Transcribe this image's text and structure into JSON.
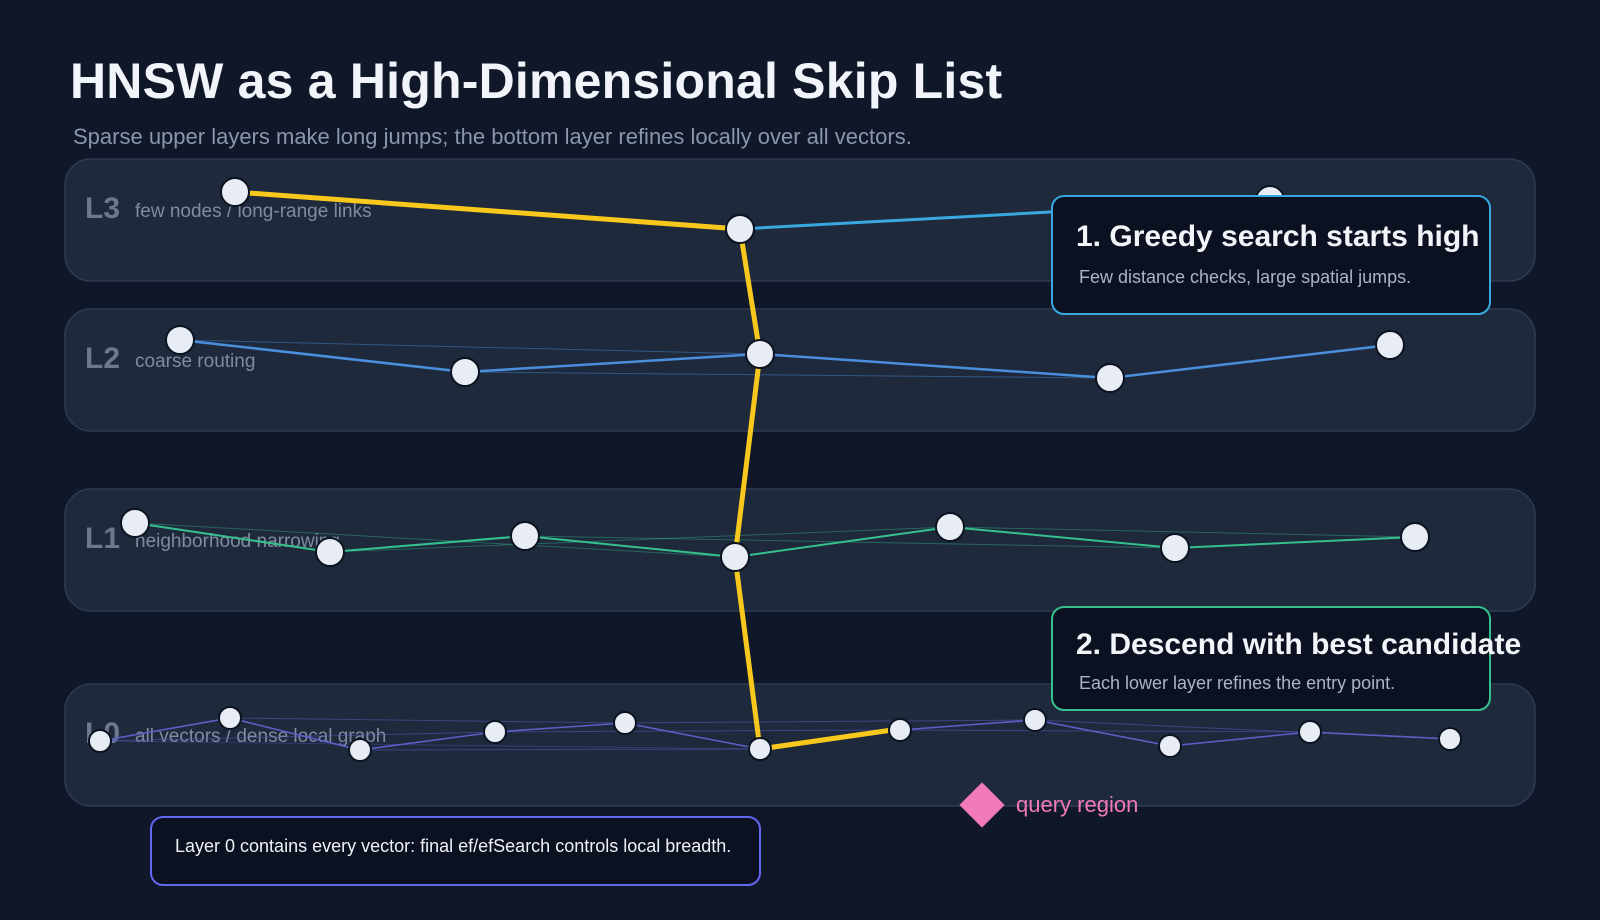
{
  "header": {
    "title": "HNSW as a High-Dimensional Skip List",
    "subtitle": "Sparse upper layers make long jumps; the bottom layer refines locally over all vectors."
  },
  "layers": [
    {
      "id": "L3",
      "label": "L3",
      "description": "few nodes / long-range links",
      "color": "#38a8e0"
    },
    {
      "id": "L2",
      "label": "L2",
      "description": "coarse routing",
      "color": "#4a8fdc"
    },
    {
      "id": "L1",
      "label": "L1",
      "description": "neighborhood narrowing",
      "color": "#36c08e"
    },
    {
      "id": "L0",
      "label": "L0",
      "description": "all vectors / dense local graph",
      "color": "#5a5fc8"
    }
  ],
  "callouts": [
    {
      "id": "greedy",
      "title": "1. Greedy search starts high",
      "body": "Few distance checks, large spatial jumps.",
      "border": "#38a8e0"
    },
    {
      "id": "descend",
      "title": "2. Descend with best candidate",
      "body": "Each lower layer refines the entry point.",
      "border": "#36c08e"
    }
  ],
  "query": {
    "label": "query region",
    "color": "#f27ab8"
  },
  "note": {
    "text": "Layer 0 contains every vector: final ef/efSearch controls local breadth.",
    "border": "#6366f1"
  },
  "colors": {
    "background": "#0f1729",
    "panel": "#1e293b",
    "search_path": "#f8c91c",
    "node": "#e8edf5"
  }
}
